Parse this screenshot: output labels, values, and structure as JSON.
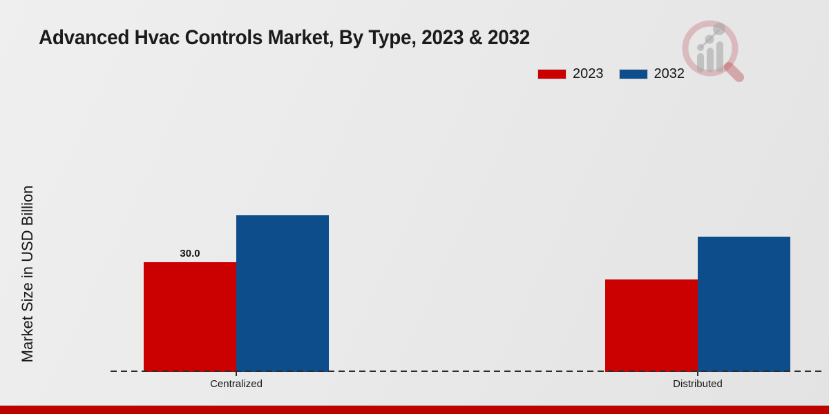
{
  "chart_data": {
    "type": "bar",
    "title": "Advanced Hvac Controls Market, By Type, 2023 & 2032",
    "ylabel": "Market Size in USD Billion",
    "xlabel": "",
    "categories": [
      "Centralized",
      "Distributed"
    ],
    "series": [
      {
        "name": "2023",
        "color": "#cb0101",
        "values": [
          30.0,
          25.3
        ],
        "value_labels": [
          "30.0",
          null
        ]
      },
      {
        "name": "2032",
        "color": "#0d4d8c",
        "values": [
          42.8,
          37.0
        ],
        "value_labels": [
          null,
          null
        ]
      }
    ],
    "ylim": [
      0,
      45
    ],
    "grid": false,
    "legend_position": "top-right",
    "x_axis_style": "dashed-baseline"
  },
  "branding": {
    "watermark_icon": "magnifier-growth-chart-watermark",
    "footer_band_color": "#bd0300"
  }
}
